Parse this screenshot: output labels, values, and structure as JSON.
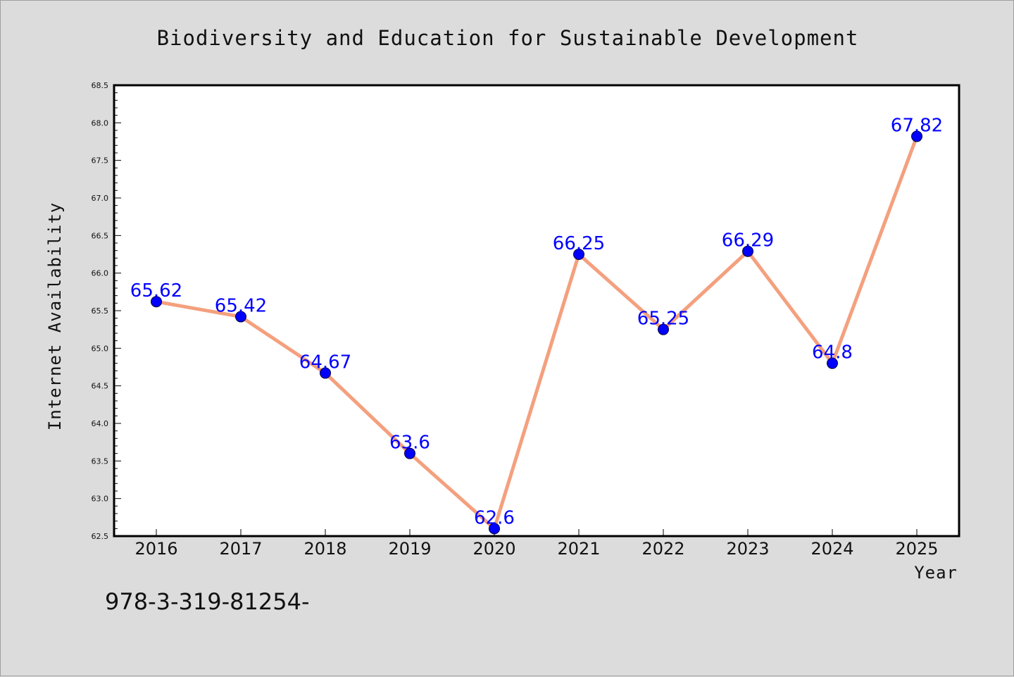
{
  "chart_data": {
    "type": "line",
    "title": "Biodiversity and Education for Sustainable Development",
    "xlabel": "Year",
    "ylabel": "Internet Availability",
    "categories": [
      "2016",
      "2017",
      "2018",
      "2019",
      "2020",
      "2021",
      "2022",
      "2023",
      "2024",
      "2025"
    ],
    "values": [
      65.62,
      65.42,
      64.67,
      63.6,
      62.6,
      66.25,
      65.25,
      66.29,
      64.8,
      67.82
    ],
    "data_labels": [
      "65.62",
      "65.42",
      "64.67",
      "63.6",
      "62.6",
      "66.25",
      "65.25",
      "66.29",
      "64.8",
      "67.82"
    ],
    "ylim": [
      62.5,
      68.5
    ],
    "yticks": [
      "62.5",
      "63.0",
      "63.5",
      "64.0",
      "64.5",
      "65.0",
      "65.5",
      "66.0",
      "66.5",
      "67.0",
      "67.5",
      "68.0",
      "68.5"
    ],
    "grid": false,
    "colors": {
      "line": "#f4a07e",
      "marker": "#0000ff",
      "label": "#0000ff",
      "background": "#dcdcdc",
      "plot_bg": "#ffffff"
    }
  },
  "footer": {
    "text": "978-3-319-81254-"
  }
}
